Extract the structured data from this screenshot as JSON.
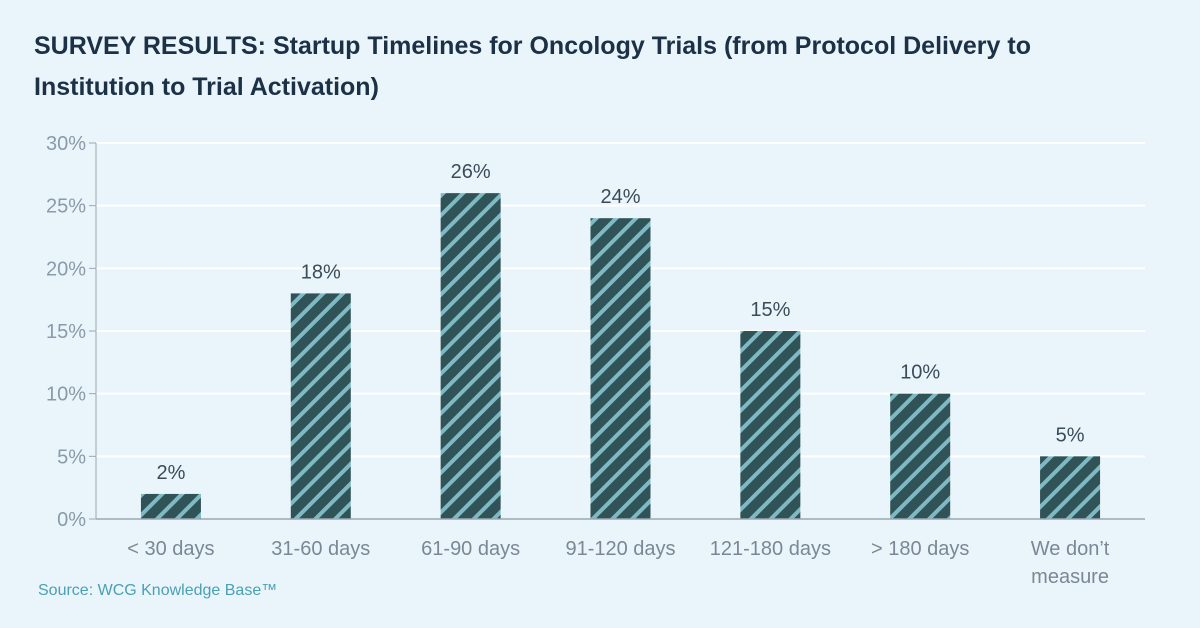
{
  "title": "SURVEY RESULTS: Startup Timelines for Oncology Trials (from Protocol Delivery to Institution to Trial Activation)",
  "source": "Source: WCG Knowledge Base™",
  "colors": {
    "background": "#eaf5fb",
    "bar_fill": "#2f5357",
    "bar_stripe": "#7fbac4",
    "title": "#1c3146",
    "source": "#4aa0b3",
    "grid": "#ffffff"
  },
  "chart_data": {
    "type": "bar",
    "categories": [
      "< 30 days",
      "31-60 days",
      "61-90 days",
      "91-120 days",
      "121-180 days",
      "> 180 days",
      "We don’t measure"
    ],
    "category_lines": [
      [
        "< 30 days"
      ],
      [
        "31-60 days"
      ],
      [
        "61-90 days"
      ],
      [
        "91-120 days"
      ],
      [
        "121-180 days"
      ],
      [
        "> 180 days"
      ],
      [
        "We don’t",
        "measure"
      ]
    ],
    "values": [
      2,
      18,
      26,
      24,
      15,
      10,
      5
    ],
    "data_labels": [
      "2%",
      "18%",
      "26%",
      "24%",
      "15%",
      "10%",
      "5%"
    ],
    "ylim": [
      0,
      30
    ],
    "yticks": [
      0,
      5,
      10,
      15,
      20,
      25,
      30
    ],
    "ytick_labels": [
      "0%",
      "5%",
      "10%",
      "15%",
      "20%",
      "25%",
      "30%"
    ],
    "grid": true,
    "bar_pattern": "diagonal-stripes"
  }
}
